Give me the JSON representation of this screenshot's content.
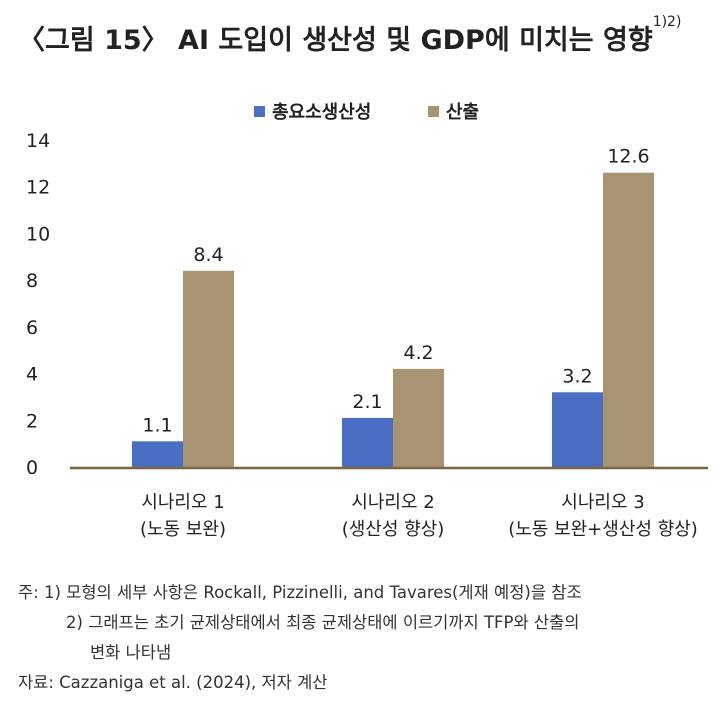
{
  "title": {
    "text": "〈그림 15〉 AI 도입이 생산성 및 GDP에 미치는 영향",
    "superscript": "1)2)"
  },
  "chart_data": {
    "type": "bar",
    "title": "〈그림 15〉 AI 도입이 생산성 및 GDP에 미치는 영향",
    "categories": [
      [
        "시나리오 1",
        "(노동 보완)"
      ],
      [
        "시나리오 2",
        "(생산성 향상)"
      ],
      [
        "시나리오 3",
        "(노동 보완+생산성 향상)"
      ]
    ],
    "series": [
      {
        "name": "총요소생산성",
        "color": "#4a6fc2",
        "values": [
          1.1,
          2.1,
          3.2
        ],
        "labels": [
          "1.1",
          "2.1",
          "3.2"
        ]
      },
      {
        "name": "산출",
        "color": "#a89473",
        "values": [
          8.4,
          4.2,
          12.6
        ],
        "labels": [
          "8.4",
          "4.2",
          "12.6"
        ]
      }
    ],
    "ylim": [
      0,
      14
    ],
    "yticks": [
      "0",
      "2",
      "4",
      "6",
      "8",
      "10",
      "12",
      "14"
    ],
    "xlabel": "",
    "ylabel": "",
    "legend": "top-center",
    "grid": false
  },
  "notes": {
    "note_prefix": "주:",
    "note1": "1) 모형의 세부 사항은 Rockall, Pizzinelli, and Tavares(게재 예정)을 참조",
    "note2_line1": "2) 그래프는 초기 균제상태에서 최종 균제상태에 이르기까지 TFP와 산출의",
    "note2_line2": "변화 나타냄",
    "source": "자료: Cazzaniga et al. (2024), 저자 계산"
  }
}
